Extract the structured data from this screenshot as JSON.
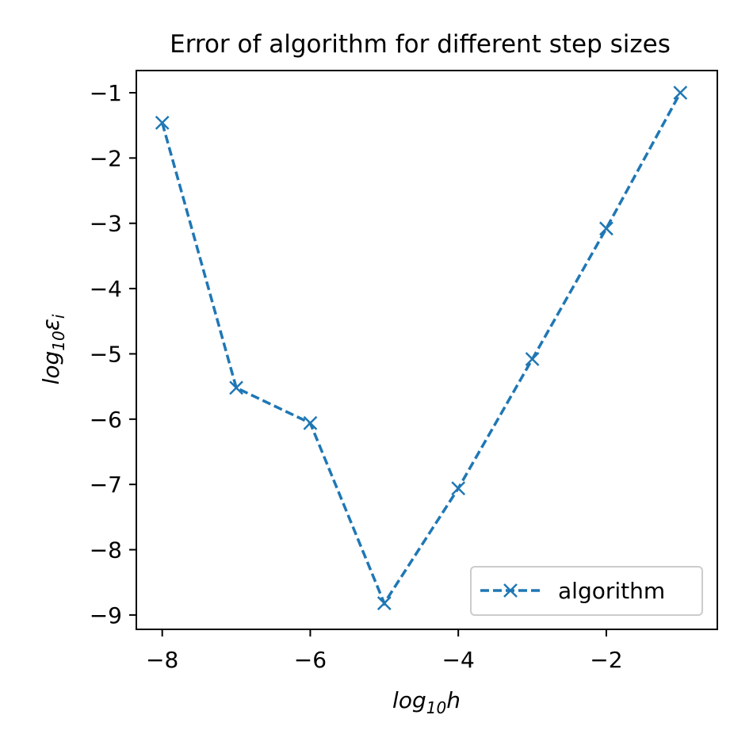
{
  "chart_data": {
    "type": "line",
    "title": "Error of algorithm for different step sizes",
    "xlabel": {
      "base": "log",
      "sub": "10",
      "tail": "h"
    },
    "ylabel": {
      "base": "log",
      "sub": "10",
      "tail": "ε",
      "tail_sub": "i"
    },
    "xlim": [
      -8.35,
      -0.5
    ],
    "ylim": [
      -9.22,
      -0.66
    ],
    "x_ticks": [
      -8,
      -6,
      -4,
      -2
    ],
    "x_tick_labels": [
      "−8",
      "−6",
      "−4",
      "−2"
    ],
    "y_ticks": [
      -1,
      -2,
      -3,
      -4,
      -5,
      -6,
      -7,
      -8,
      -9
    ],
    "y_tick_labels": [
      "−1",
      "−2",
      "−3",
      "−4",
      "−5",
      "−6",
      "−7",
      "−8",
      "−9"
    ],
    "grid": false,
    "legend_position": "lower-right",
    "series": [
      {
        "name": "algorithm",
        "color": "#1f77b4",
        "line_style": "dashed",
        "marker": "x",
        "x": [
          -8,
          -7,
          -6,
          -5,
          -4,
          -3,
          -2,
          -1
        ],
        "y": [
          -1.46,
          -5.52,
          -6.06,
          -8.82,
          -7.06,
          -5.08,
          -3.08,
          -1.0
        ]
      }
    ]
  }
}
